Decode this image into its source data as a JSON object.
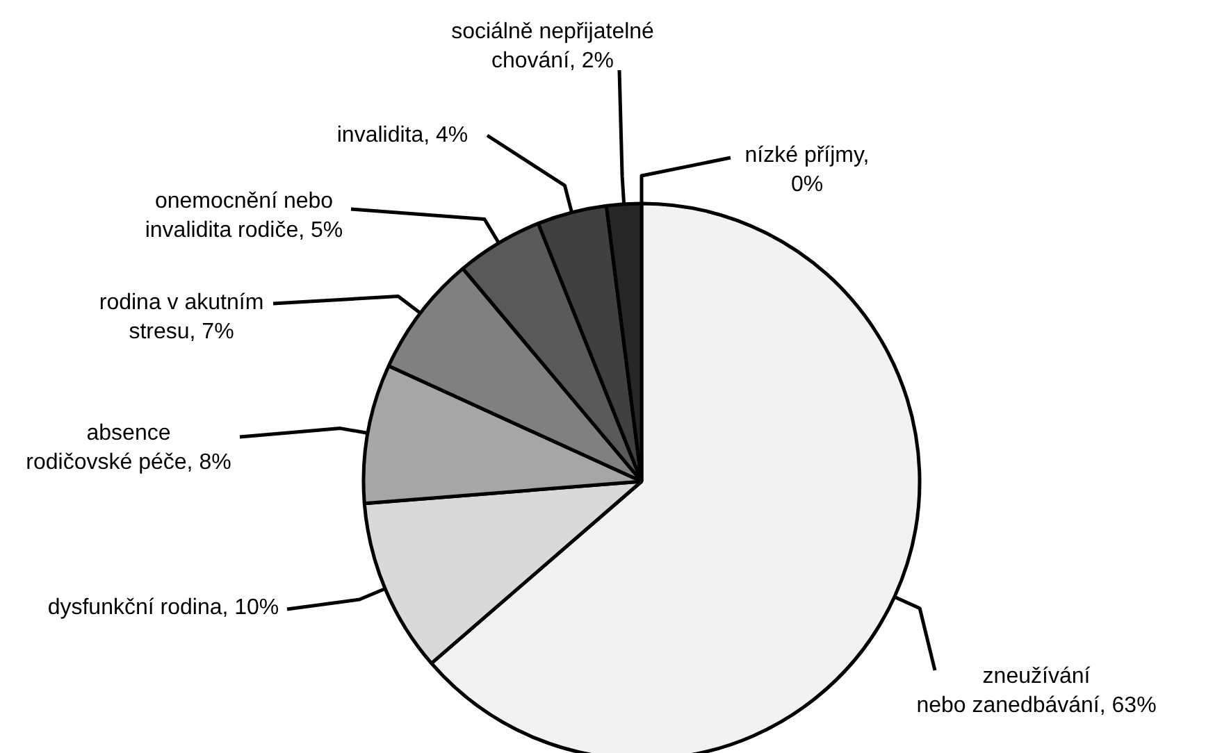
{
  "chart_data": {
    "type": "pie",
    "categories": [
      "zneužívání nebo zanedbávání",
      "dysfunkční rodina",
      "absence rodičovské péče",
      "rodina v akutním stresu",
      "onemocnění nebo invalidita rodiče",
      "invalidita",
      "sociálně nepřijatelné chování",
      "nízké příjmy"
    ],
    "values": [
      63,
      10,
      8,
      7,
      5,
      4,
      2,
      0
    ],
    "value_labels": [
      "63%",
      "10%",
      "8%",
      "7%",
      "5%",
      "4%",
      "2%",
      "0%"
    ],
    "colors": [
      "#f2f2f2",
      "#d9d9d9",
      "#a6a6a6",
      "#808080",
      "#595959",
      "#404040",
      "#262626",
      "#0d0d0d"
    ]
  }
}
